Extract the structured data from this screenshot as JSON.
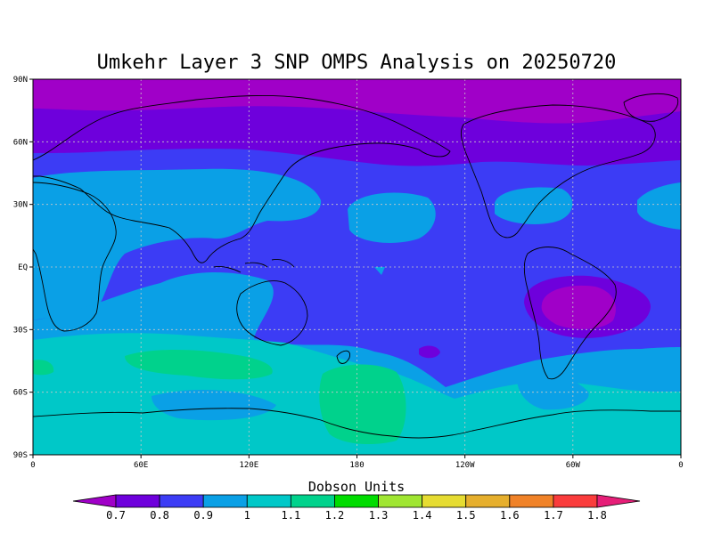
{
  "title": "Umkehr Layer 3 SNP OMPS Analysis on 20250720",
  "units_label": "Dobson Units",
  "lat_ticks": [
    {
      "value": 90,
      "label": "90N"
    },
    {
      "value": 60,
      "label": "60N"
    },
    {
      "value": 30,
      "label": "30N"
    },
    {
      "value": 0,
      "label": "EQ"
    },
    {
      "value": -30,
      "label": "30S"
    },
    {
      "value": -60,
      "label": "60S"
    },
    {
      "value": -90,
      "label": "90S"
    }
  ],
  "lon_ticks": [
    {
      "value": 0,
      "label": "0"
    },
    {
      "value": 60,
      "label": "60E"
    },
    {
      "value": 120,
      "label": "120E"
    },
    {
      "value": 180,
      "label": "180"
    },
    {
      "value": 240,
      "label": "120W"
    },
    {
      "value": 300,
      "label": "60W"
    },
    {
      "value": 360,
      "label": "0"
    }
  ],
  "colorbar": {
    "levels": [
      "0.7",
      "0.8",
      "0.9",
      "1",
      "1.1",
      "1.2",
      "1.3",
      "1.4",
      "1.5",
      "1.6",
      "1.7",
      "1.8"
    ],
    "colors": [
      "#a000c8",
      "#6e00dc",
      "#3c3cf5",
      "#0aa0e6",
      "#00c8c8",
      "#00d28c",
      "#00dc00",
      "#a0e632",
      "#e6dc32",
      "#e6af2d",
      "#f08228",
      "#fa3c3c",
      "#e61e78"
    ]
  }
}
